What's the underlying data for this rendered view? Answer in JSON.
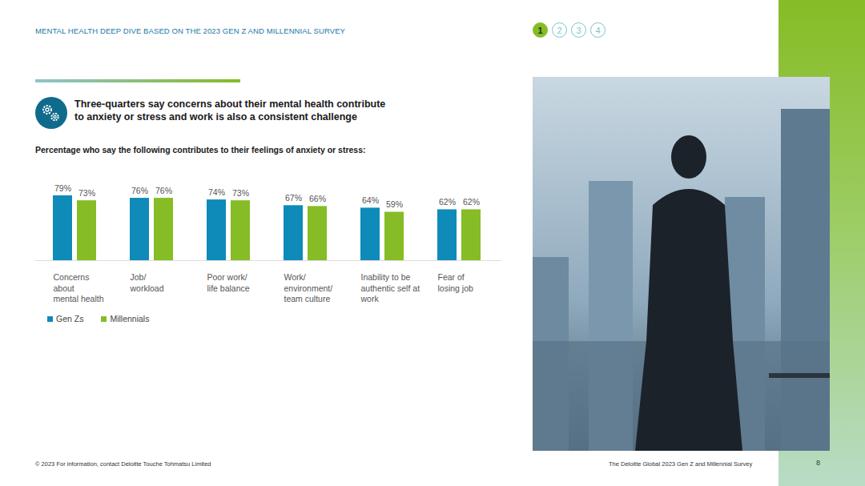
{
  "header": "MENTAL HEALTH DEEP DIVE BASED ON THE 2023 GEN Z AND MILLENNIAL SURVEY",
  "pages": [
    1,
    2,
    3,
    4
  ],
  "current_page": 1,
  "footer": {
    "left": "© 2023 For information, contact Deloitte Touche Tohmatsu Limited",
    "right": "The Deloitte Global 2023 Gen Z and Millennial Survey",
    "page": 8
  },
  "chart_data": {
    "type": "bar",
    "title": "Three-quarters say concerns about their mental health contribute\nto anxiety or stress and work is also a consistent challenge",
    "subtitle": "Percentage who say the following contributes to their feelings of anxiety or stress:",
    "categories": [
      "Concerns\nabout\nmental health",
      "Job/\nworkload",
      "Poor work/\nlife balance",
      "Work/\nenvironment/\nteam culture",
      "Inability to be\nauthentic self at\nwork",
      "Fear of\nlosing job"
    ],
    "series": [
      {
        "name": "Gen Zs",
        "color": "#0e8bb8",
        "values": [
          79,
          76,
          74,
          67,
          64,
          62
        ],
        "value_labels": [
          "79%",
          "76%",
          "74%",
          "67%",
          "64%",
          "62%"
        ]
      },
      {
        "name": "Millennials",
        "color": "#86bc25",
        "values": [
          73,
          76,
          73,
          66,
          59,
          62
        ],
        "value_labels": [
          "73%",
          "76%",
          "73%",
          "66%",
          "59%",
          "62%"
        ]
      }
    ],
    "data_labels": true,
    "tick_labels": "x",
    "grid": false,
    "legend": "bottom-left"
  }
}
